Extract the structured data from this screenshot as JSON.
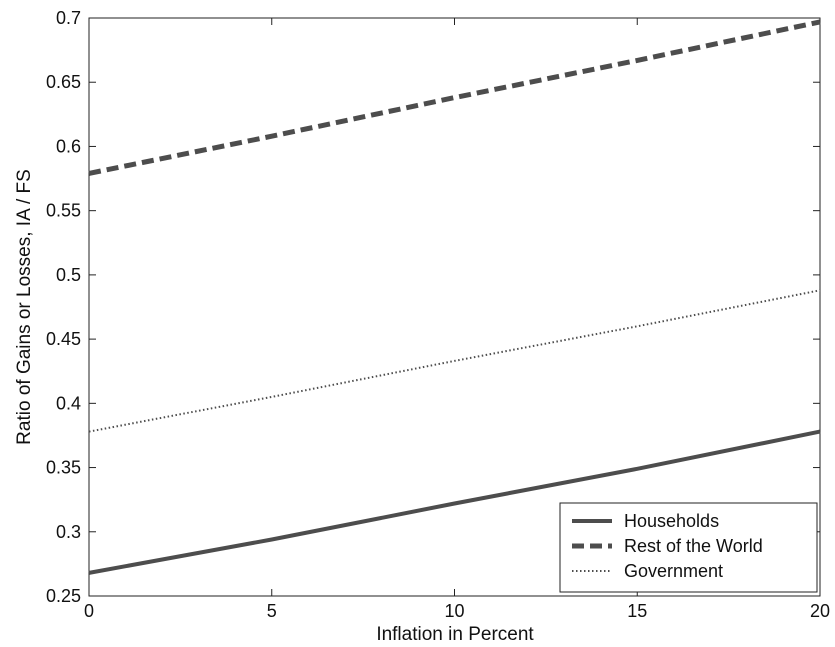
{
  "colors": {
    "line": "#4d4d4d",
    "axis": "#222222",
    "background": "#ffffff"
  },
  "chart_data": {
    "type": "line",
    "xlabel": "Inflation in Percent",
    "ylabel": "Ratio of Gains or Losses, IA / FS",
    "xlim": [
      0,
      20
    ],
    "ylim": [
      0.25,
      0.7
    ],
    "xticks": [
      0,
      5,
      10,
      15,
      20
    ],
    "xtick_labels": [
      "0",
      "5",
      "10",
      "15",
      "20"
    ],
    "yticks": [
      0.25,
      0.3,
      0.35,
      0.4,
      0.45,
      0.5,
      0.55,
      0.6,
      0.65,
      0.7
    ],
    "ytick_labels": [
      "0.25",
      "0.3",
      "0.35",
      "0.4",
      "0.45",
      "0.5",
      "0.55",
      "0.6",
      "0.65",
      "0.7"
    ],
    "grid": false,
    "legend_position": "bottom-right",
    "series": [
      {
        "name": "Households",
        "style": "solid",
        "x": [
          0,
          5,
          10,
          15,
          20
        ],
        "y": [
          0.268,
          0.294,
          0.322,
          0.349,
          0.378
        ]
      },
      {
        "name": "Rest of the World",
        "style": "dashed",
        "x": [
          0,
          5,
          10,
          15,
          20
        ],
        "y": [
          0.579,
          0.608,
          0.638,
          0.667,
          0.697
        ]
      },
      {
        "name": "Government",
        "style": "dotted",
        "x": [
          0,
          5,
          10,
          15,
          20
        ],
        "y": [
          0.378,
          0.405,
          0.433,
          0.46,
          0.488
        ]
      }
    ]
  }
}
